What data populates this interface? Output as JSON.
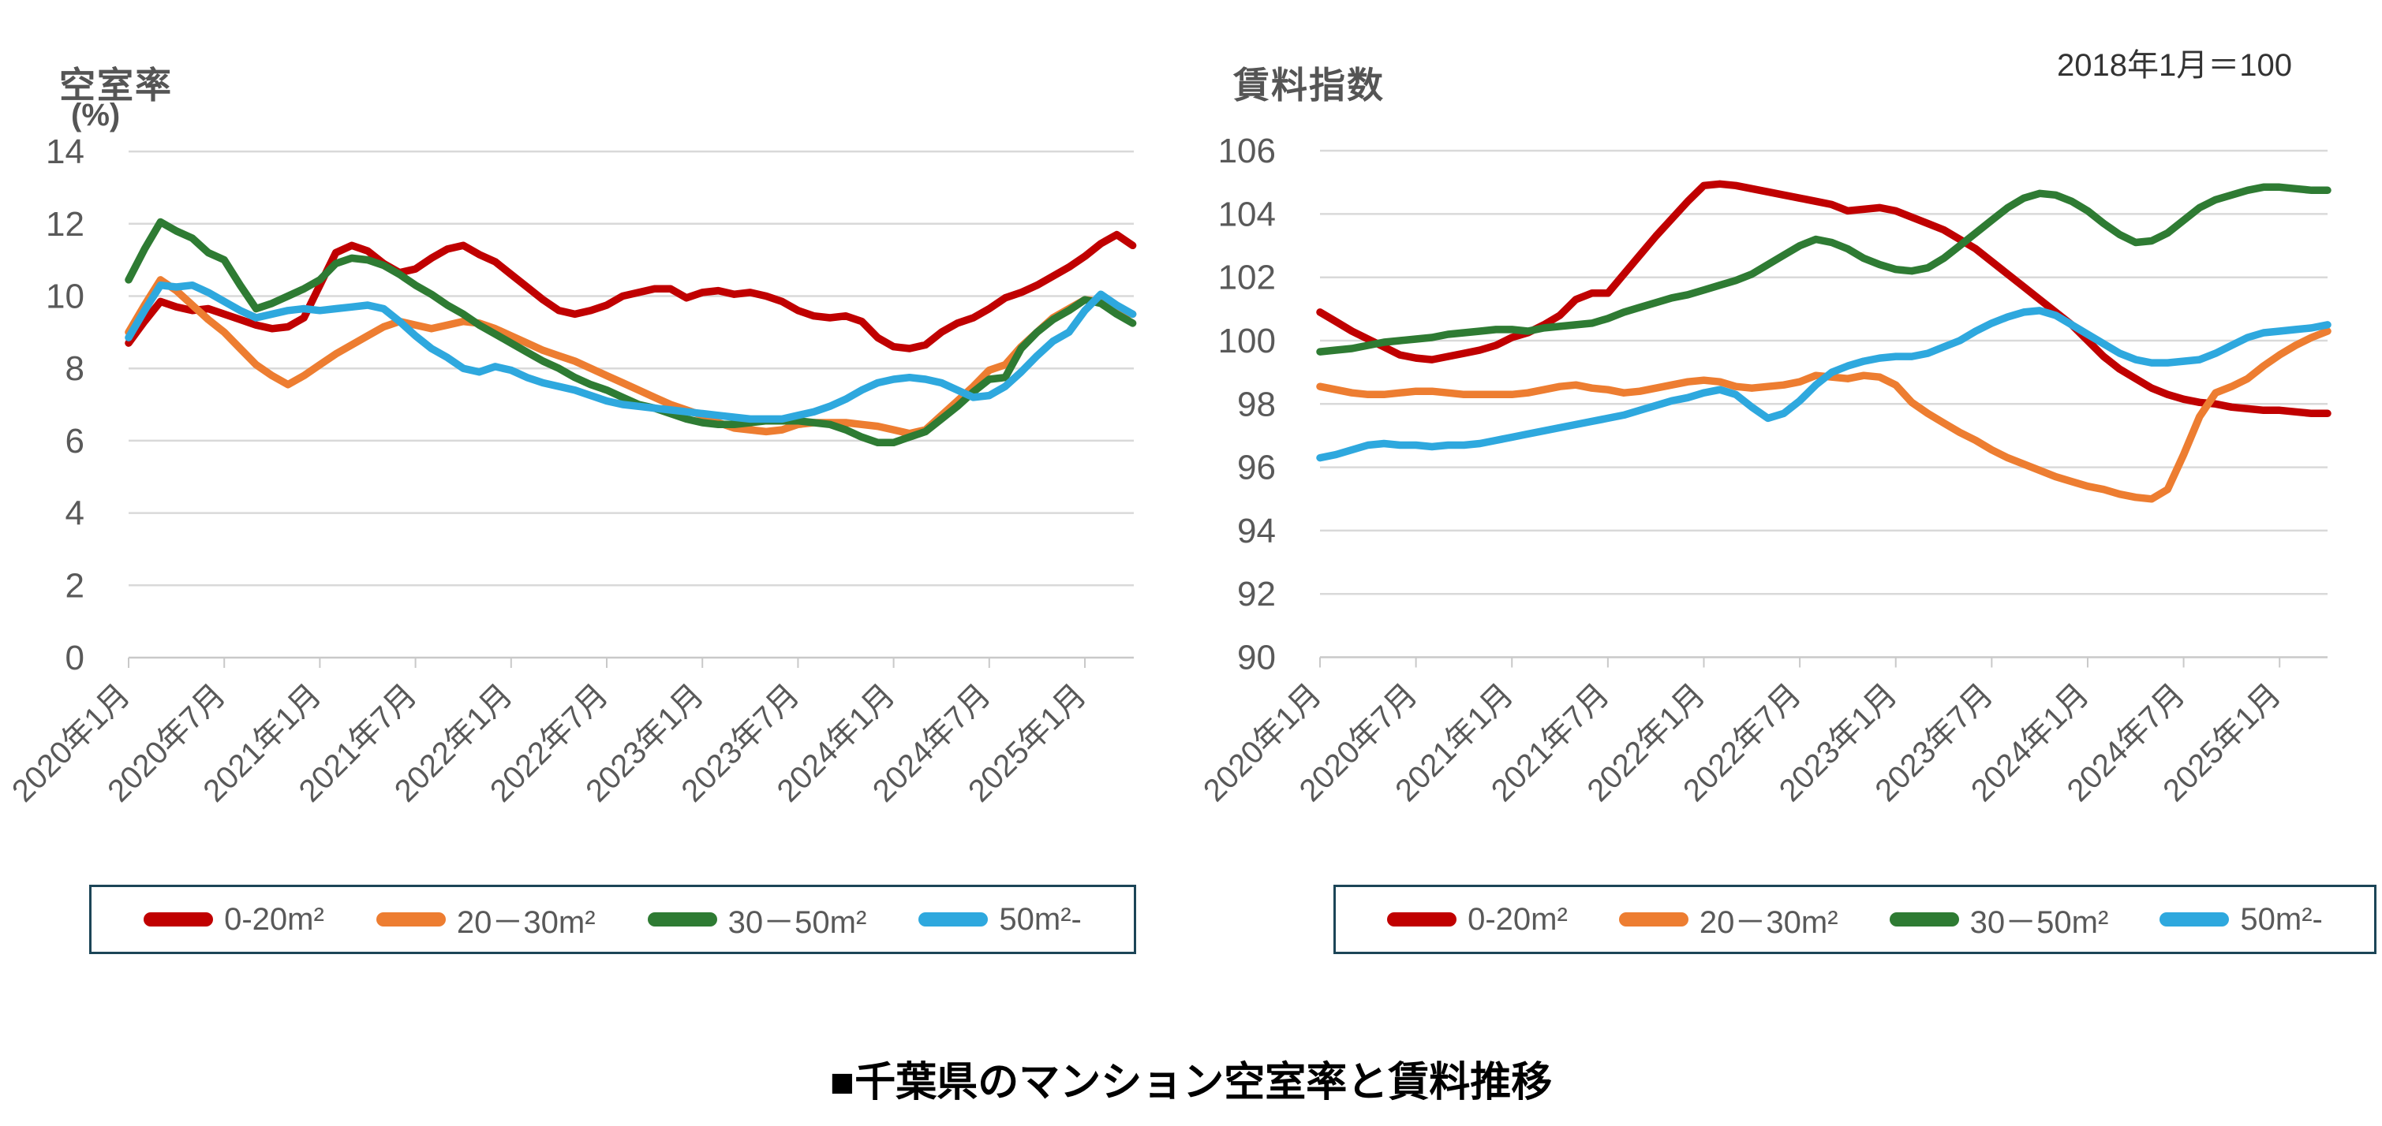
{
  "caption": "■千葉県のマンション空室率と賃料推移",
  "colors": {
    "red": "#C00000",
    "orange": "#ED7D31",
    "green": "#2E7B33",
    "blue": "#2EA8DE",
    "grid": "#D9D9D9",
    "axis": "#C9C9C9",
    "tick_text": "#595959",
    "title_text": "#555555",
    "legend_border": "#1C4557"
  },
  "chart_data": [
    {
      "type": "line",
      "title": "空室率",
      "unit_label": "(%)",
      "note": "",
      "ylim": [
        0,
        14
      ],
      "ytick_step": 2,
      "grid": true,
      "legend_position": "bottom",
      "x_interval": "monthly",
      "x_range": [
        "2020年1月",
        "2025年4月"
      ],
      "x_ticks_every_months": 6,
      "x_tick_labels": [
        "2020年1月",
        "2020年7月",
        "2021年1月",
        "2021年7月",
        "2022年1月",
        "2022年7月",
        "2023年1月",
        "2023年7月",
        "2024年1月",
        "2024年7月",
        "2025年1月"
      ],
      "series": [
        {
          "name": "0-20m²",
          "color": "#C00000",
          "values": [
            8.7,
            9.3,
            9.85,
            9.7,
            9.6,
            9.65,
            9.5,
            9.35,
            9.2,
            9.1,
            9.15,
            9.4,
            10.3,
            11.2,
            11.4,
            11.25,
            10.9,
            10.65,
            10.75,
            11.05,
            11.3,
            11.4,
            11.15,
            10.95,
            10.6,
            10.25,
            9.9,
            9.6,
            9.5,
            9.6,
            9.75,
            10.0,
            10.1,
            10.2,
            10.2,
            9.95,
            10.1,
            10.15,
            10.05,
            10.1,
            10.0,
            9.85,
            9.6,
            9.45,
            9.4,
            9.45,
            9.3,
            8.85,
            8.6,
            8.55,
            8.65,
            9.0,
            9.25,
            9.4,
            9.65,
            9.95,
            10.1,
            10.3,
            10.55,
            10.8,
            11.1,
            11.45,
            11.7,
            11.4
          ]
        },
        {
          "name": "20－30m²",
          "color": "#ED7D31",
          "values": [
            9.0,
            9.75,
            10.45,
            10.15,
            9.75,
            9.35,
            9.0,
            8.55,
            8.1,
            7.8,
            7.55,
            7.8,
            8.1,
            8.4,
            8.65,
            8.9,
            9.15,
            9.3,
            9.2,
            9.1,
            9.2,
            9.3,
            9.25,
            9.1,
            8.9,
            8.7,
            8.5,
            8.35,
            8.2,
            8.0,
            7.8,
            7.6,
            7.4,
            7.2,
            7.0,
            6.85,
            6.7,
            6.5,
            6.35,
            6.3,
            6.25,
            6.3,
            6.45,
            6.5,
            6.5,
            6.5,
            6.45,
            6.4,
            6.3,
            6.2,
            6.3,
            6.7,
            7.1,
            7.5,
            7.95,
            8.1,
            8.6,
            9.0,
            9.4,
            9.65,
            9.9,
            9.85,
            9.6,
            9.5
          ]
        },
        {
          "name": "30－50m²",
          "color": "#2E7B33",
          "values": [
            10.45,
            11.3,
            12.05,
            11.8,
            11.6,
            11.2,
            11.0,
            10.3,
            9.65,
            9.8,
            10.0,
            10.2,
            10.45,
            10.9,
            11.05,
            11.0,
            10.85,
            10.6,
            10.3,
            10.05,
            9.75,
            9.5,
            9.2,
            8.95,
            8.7,
            8.45,
            8.2,
            8.0,
            7.75,
            7.55,
            7.4,
            7.2,
            7.0,
            6.9,
            6.75,
            6.6,
            6.5,
            6.45,
            6.45,
            6.5,
            6.55,
            6.55,
            6.55,
            6.5,
            6.45,
            6.3,
            6.1,
            5.95,
            5.95,
            6.1,
            6.25,
            6.6,
            6.95,
            7.35,
            7.7,
            7.75,
            8.55,
            9.0,
            9.35,
            9.6,
            9.9,
            9.8,
            9.5,
            9.25
          ]
        },
        {
          "name": "50m²-",
          "color": "#2EA8DE",
          "values": [
            8.85,
            9.6,
            10.3,
            10.25,
            10.3,
            10.1,
            9.85,
            9.6,
            9.4,
            9.5,
            9.6,
            9.65,
            9.6,
            9.65,
            9.7,
            9.75,
            9.65,
            9.3,
            8.9,
            8.55,
            8.3,
            8.0,
            7.9,
            8.05,
            7.95,
            7.75,
            7.6,
            7.5,
            7.4,
            7.25,
            7.1,
            7.0,
            6.95,
            6.9,
            6.85,
            6.8,
            6.75,
            6.7,
            6.65,
            6.6,
            6.6,
            6.6,
            6.7,
            6.8,
            6.95,
            7.15,
            7.4,
            7.6,
            7.7,
            7.75,
            7.7,
            7.6,
            7.4,
            7.2,
            7.25,
            7.5,
            7.9,
            8.35,
            8.75,
            9.0,
            9.6,
            10.05,
            9.75,
            9.5
          ]
        }
      ]
    },
    {
      "type": "line",
      "title": "賃料指数",
      "unit_label": "",
      "note": "2018年1月＝100",
      "ylim": [
        90,
        106
      ],
      "ytick_step": 2,
      "grid": true,
      "legend_position": "bottom",
      "x_interval": "monthly",
      "x_range": [
        "2020年1月",
        "2025年4月"
      ],
      "x_ticks_every_months": 6,
      "x_tick_labels": [
        "2020年1月",
        "2020年7月",
        "2021年1月",
        "2021年7月",
        "2022年1月",
        "2022年7月",
        "2023年1月",
        "2023年7月",
        "2024年1月",
        "2024年7月",
        "2025年1月"
      ],
      "series": [
        {
          "name": "0-20m²",
          "color": "#C00000",
          "values": [
            100.9,
            100.6,
            100.3,
            100.05,
            99.8,
            99.55,
            99.45,
            99.4,
            99.5,
            99.6,
            99.7,
            99.85,
            100.1,
            100.25,
            100.5,
            100.8,
            101.3,
            101.5,
            101.5,
            102.1,
            102.7,
            103.3,
            103.85,
            104.4,
            104.9,
            104.95,
            104.9,
            104.8,
            104.7,
            104.6,
            104.5,
            104.4,
            104.3,
            104.1,
            104.15,
            104.2,
            104.1,
            103.9,
            103.7,
            103.5,
            103.2,
            102.9,
            102.5,
            102.1,
            101.7,
            101.3,
            100.9,
            100.5,
            100.0,
            99.5,
            99.1,
            98.8,
            98.5,
            98.3,
            98.15,
            98.05,
            98.0,
            97.9,
            97.85,
            97.8,
            97.8,
            97.75,
            97.7,
            97.7
          ]
        },
        {
          "name": "20－30m²",
          "color": "#ED7D31",
          "values": [
            98.55,
            98.45,
            98.35,
            98.3,
            98.3,
            98.35,
            98.4,
            98.4,
            98.35,
            98.3,
            98.3,
            98.3,
            98.3,
            98.35,
            98.45,
            98.55,
            98.6,
            98.5,
            98.45,
            98.35,
            98.4,
            98.5,
            98.6,
            98.7,
            98.75,
            98.7,
            98.55,
            98.5,
            98.55,
            98.6,
            98.7,
            98.9,
            98.85,
            98.8,
            98.9,
            98.85,
            98.6,
            98.05,
            97.7,
            97.4,
            97.1,
            96.85,
            96.55,
            96.3,
            96.1,
            95.9,
            95.7,
            95.55,
            95.4,
            95.3,
            95.15,
            95.05,
            95.0,
            95.3,
            96.4,
            97.6,
            98.35,
            98.55,
            98.8,
            99.2,
            99.55,
            99.85,
            100.1,
            100.3
          ]
        },
        {
          "name": "30－50m²",
          "color": "#2E7B33",
          "values": [
            99.65,
            99.7,
            99.75,
            99.85,
            99.95,
            100.0,
            100.05,
            100.1,
            100.2,
            100.25,
            100.3,
            100.35,
            100.35,
            100.3,
            100.4,
            100.45,
            100.5,
            100.55,
            100.7,
            100.9,
            101.05,
            101.2,
            101.35,
            101.45,
            101.6,
            101.75,
            101.9,
            102.1,
            102.4,
            102.7,
            103.0,
            103.2,
            103.1,
            102.9,
            102.6,
            102.4,
            102.25,
            102.2,
            102.3,
            102.6,
            103.0,
            103.4,
            103.8,
            104.2,
            104.5,
            104.65,
            104.6,
            104.4,
            104.1,
            103.7,
            103.35,
            103.1,
            103.15,
            103.4,
            103.8,
            104.2,
            104.45,
            104.6,
            104.75,
            104.85,
            104.85,
            104.8,
            104.75,
            104.75
          ]
        },
        {
          "name": "50m²-",
          "color": "#2EA8DE",
          "values": [
            96.3,
            96.4,
            96.55,
            96.7,
            96.75,
            96.7,
            96.7,
            96.65,
            96.7,
            96.7,
            96.75,
            96.85,
            96.95,
            97.05,
            97.15,
            97.25,
            97.35,
            97.45,
            97.55,
            97.65,
            97.8,
            97.95,
            98.1,
            98.2,
            98.35,
            98.45,
            98.3,
            97.9,
            97.55,
            97.7,
            98.1,
            98.6,
            99.0,
            99.2,
            99.35,
            99.45,
            99.5,
            99.5,
            99.6,
            99.8,
            100.0,
            100.3,
            100.55,
            100.75,
            100.9,
            100.95,
            100.8,
            100.5,
            100.2,
            99.9,
            99.6,
            99.4,
            99.3,
            99.3,
            99.35,
            99.4,
            99.6,
            99.85,
            100.1,
            100.25,
            100.3,
            100.35,
            100.4,
            100.5
          ]
        }
      ]
    }
  ]
}
